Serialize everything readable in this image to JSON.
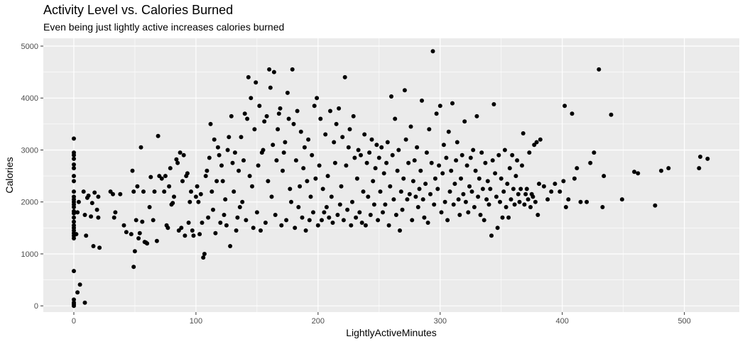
{
  "chart_data": {
    "type": "scatter",
    "title": "Activity Level vs. Calories Burned",
    "subtitle": "Even being just lightly active increases calories burned",
    "xlabel": "LightlyActiveMinutes",
    "ylabel": "Calories",
    "xlim": [
      -25,
      545
    ],
    "ylim": [
      -120,
      5150
    ],
    "x_ticks": [
      0,
      100,
      200,
      300,
      400,
      500
    ],
    "y_ticks": [
      0,
      1000,
      2000,
      3000,
      4000,
      5000
    ],
    "grid": true,
    "point_color": "#000000",
    "panel_color": "#ebebeb",
    "grid_color": "#ffffff",
    "points": [
      [
        0,
        0
      ],
      [
        0,
        30
      ],
      [
        0,
        60
      ],
      [
        0,
        120
      ],
      [
        0,
        670
      ],
      [
        3,
        260
      ],
      [
        5,
        410
      ],
      [
        9,
        60
      ],
      [
        0,
        1300
      ],
      [
        0,
        1350
      ],
      [
        0,
        1400
      ],
      [
        0,
        1450
      ],
      [
        0,
        1500
      ],
      [
        0,
        1550
      ],
      [
        0,
        1620
      ],
      [
        0,
        1700
      ],
      [
        0,
        1780
      ],
      [
        0,
        1820
      ],
      [
        0,
        1900
      ],
      [
        0,
        1950
      ],
      [
        0,
        2000
      ],
      [
        0,
        2050
      ],
      [
        0,
        2100
      ],
      [
        0,
        2200
      ],
      [
        0,
        2400
      ],
      [
        0,
        2500
      ],
      [
        0,
        2650
      ],
      [
        0,
        2720
      ],
      [
        0,
        2830
      ],
      [
        0,
        2900
      ],
      [
        0,
        2950
      ],
      [
        0,
        3220
      ],
      [
        2,
        1380
      ],
      [
        3,
        1800
      ],
      [
        4,
        2000
      ],
      [
        8,
        2200
      ],
      [
        9,
        1750
      ],
      [
        10,
        1350
      ],
      [
        11,
        2080
      ],
      [
        12,
        2120
      ],
      [
        15,
        1980
      ],
      [
        16,
        1150
      ],
      [
        17,
        2180
      ],
      [
        19,
        1850
      ],
      [
        20,
        2100
      ],
      [
        21,
        1120
      ],
      [
        20,
        1700
      ],
      [
        14,
        1720
      ],
      [
        30,
        2200
      ],
      [
        32,
        2150
      ],
      [
        33,
        1700
      ],
      [
        34,
        1800
      ],
      [
        38,
        2150
      ],
      [
        41,
        1550
      ],
      [
        43,
        1420
      ],
      [
        47,
        1380
      ],
      [
        48,
        2600
      ],
      [
        49,
        2200
      ],
      [
        49,
        750
      ],
      [
        50,
        1050
      ],
      [
        51,
        1650
      ],
      [
        52,
        2300
      ],
      [
        53,
        1300
      ],
      [
        54,
        1400
      ],
      [
        55,
        3050
      ],
      [
        56,
        1620
      ],
      [
        57,
        2200
      ],
      [
        58,
        1230
      ],
      [
        59,
        1220
      ],
      [
        60,
        1200
      ],
      [
        62,
        1900
      ],
      [
        63,
        2480
      ],
      [
        65,
        1650
      ],
      [
        66,
        2200
      ],
      [
        68,
        1250
      ],
      [
        69,
        3270
      ],
      [
        70,
        2500
      ],
      [
        72,
        2450
      ],
      [
        74,
        2200
      ],
      [
        75,
        2500
      ],
      [
        76,
        1550
      ],
      [
        77,
        1500
      ],
      [
        78,
        2300
      ],
      [
        79,
        2650
      ],
      [
        80,
        1950
      ],
      [
        81,
        1980
      ],
      [
        82,
        2100
      ],
      [
        84,
        2820
      ],
      [
        85,
        2750
      ],
      [
        86,
        1450
      ],
      [
        87,
        2950
      ],
      [
        88,
        1500
      ],
      [
        89,
        2400
      ],
      [
        90,
        2900
      ],
      [
        91,
        1350
      ],
      [
        92,
        2500
      ],
      [
        93,
        2550
      ],
      [
        94,
        1600
      ],
      [
        95,
        2000
      ],
      [
        96,
        2200
      ],
      [
        97,
        1450
      ],
      [
        98,
        1350
      ],
      [
        100,
        2100
      ],
      [
        101,
        2300
      ],
      [
        102,
        2000
      ],
      [
        103,
        1380
      ],
      [
        104,
        2150
      ],
      [
        105,
        1600
      ],
      [
        106,
        930
      ],
      [
        107,
        1000
      ],
      [
        108,
        2500
      ],
      [
        109,
        2600
      ],
      [
        110,
        1700
      ],
      [
        111,
        2850
      ],
      [
        112,
        3500
      ],
      [
        113,
        2200
      ],
      [
        114,
        1850
      ],
      [
        115,
        3200
      ],
      [
        116,
        1400
      ],
      [
        117,
        2400
      ],
      [
        118,
        3050
      ],
      [
        119,
        2900
      ],
      [
        120,
        1600
      ],
      [
        121,
        2700
      ],
      [
        122,
        2400
      ],
      [
        123,
        1750
      ],
      [
        124,
        2050
      ],
      [
        125,
        1550
      ],
      [
        126,
        3000
      ],
      [
        127,
        3250
      ],
      [
        128,
        1150
      ],
      [
        129,
        3650
      ],
      [
        130,
        2750
      ],
      [
        131,
        2200
      ],
      [
        132,
        2950
      ],
      [
        133,
        1450
      ],
      [
        134,
        1700
      ],
      [
        135,
        2600
      ],
      [
        136,
        1900
      ],
      [
        137,
        3250
      ],
      [
        138,
        2000
      ],
      [
        139,
        2800
      ],
      [
        140,
        3700
      ],
      [
        141,
        1650
      ],
      [
        142,
        3600
      ],
      [
        143,
        4400
      ],
      [
        144,
        2500
      ],
      [
        145,
        4000
      ],
      [
        146,
        2300
      ],
      [
        147,
        1500
      ],
      [
        148,
        3400
      ],
      [
        149,
        4300
      ],
      [
        150,
        1800
      ],
      [
        151,
        2700
      ],
      [
        152,
        3850
      ],
      [
        153,
        1450
      ],
      [
        154,
        2950
      ],
      [
        155,
        3000
      ],
      [
        156,
        3550
      ],
      [
        157,
        1600
      ],
      [
        158,
        3650
      ],
      [
        159,
        2400
      ],
      [
        160,
        4550
      ],
      [
        161,
        4200
      ],
      [
        162,
        2100
      ],
      [
        163,
        3100
      ],
      [
        164,
        4500
      ],
      [
        165,
        1750
      ],
      [
        166,
        2800
      ],
      [
        167,
        3400
      ],
      [
        168,
        3700
      ],
      [
        169,
        3800
      ],
      [
        170,
        1550
      ],
      [
        171,
        2600
      ],
      [
        172,
        2950
      ],
      [
        173,
        3150
      ],
      [
        174,
        1650
      ],
      [
        175,
        4100
      ],
      [
        176,
        3600
      ],
      [
        177,
        2250
      ],
      [
        178,
        2000
      ],
      [
        179,
        4550
      ],
      [
        180,
        3500
      ],
      [
        181,
        1500
      ],
      [
        182,
        2800
      ],
      [
        183,
        3750
      ],
      [
        184,
        1900
      ],
      [
        185,
        2300
      ],
      [
        186,
        3350
      ],
      [
        187,
        1700
      ],
      [
        188,
        2650
      ],
      [
        189,
        3050
      ],
      [
        190,
        1450
      ],
      [
        191,
        2400
      ],
      [
        192,
        3200
      ],
      [
        193,
        1650
      ],
      [
        194,
        2100
      ],
      [
        195,
        2900
      ],
      [
        196,
        1800
      ],
      [
        197,
        3850
      ],
      [
        198,
        2450
      ],
      [
        199,
        4000
      ],
      [
        200,
        1550
      ],
      [
        201,
        2700
      ],
      [
        202,
        3600
      ],
      [
        203,
        1650
      ],
      [
        204,
        2250
      ],
      [
        205,
        1800
      ],
      [
        206,
        3300
      ],
      [
        207,
        1900
      ],
      [
        208,
        2500
      ],
      [
        209,
        1700
      ],
      [
        210,
        3750
      ],
      [
        211,
        2100
      ],
      [
        212,
        1600
      ],
      [
        213,
        3150
      ],
      [
        214,
        2750
      ],
      [
        215,
        3500
      ],
      [
        216,
        1750
      ],
      [
        217,
        3800
      ],
      [
        218,
        1950
      ],
      [
        219,
        2300
      ],
      [
        220,
        3250
      ],
      [
        221,
        1650
      ],
      [
        222,
        4400
      ],
      [
        223,
        2700
      ],
      [
        224,
        1850
      ],
      [
        225,
        3050
      ],
      [
        226,
        3400
      ],
      [
        227,
        1550
      ],
      [
        228,
        2000
      ],
      [
        229,
        3650
      ],
      [
        230,
        2850
      ],
      [
        231,
        1700
      ],
      [
        232,
        2450
      ],
      [
        233,
        3000
      ],
      [
        234,
        1800
      ],
      [
        235,
        2900
      ],
      [
        236,
        1600
      ],
      [
        237,
        2200
      ],
      [
        238,
        3300
      ],
      [
        239,
        1550
      ],
      [
        240,
        2750
      ],
      [
        241,
        2100
      ],
      [
        242,
        2950
      ],
      [
        243,
        1750
      ],
      [
        244,
        3200
      ],
      [
        245,
        2400
      ],
      [
        246,
        1950
      ],
      [
        247,
        2650
      ],
      [
        248,
        3100
      ],
      [
        249,
        1650
      ],
      [
        250,
        2850
      ],
      [
        251,
        2200
      ],
      [
        252,
        3050
      ],
      [
        253,
        1800
      ],
      [
        254,
        2550
      ],
      [
        255,
        1950
      ],
      [
        256,
        2750
      ],
      [
        257,
        3150
      ],
      [
        258,
        1550
      ],
      [
        259,
        2300
      ],
      [
        260,
        4030
      ],
      [
        261,
        2900
      ],
      [
        262,
        2050
      ],
      [
        263,
        3600
      ],
      [
        264,
        1750
      ],
      [
        265,
        2600
      ],
      [
        266,
        3000
      ],
      [
        267,
        1450
      ],
      [
        268,
        2200
      ],
      [
        269,
        1850
      ],
      [
        270,
        2450
      ],
      [
        271,
        4150
      ],
      [
        272,
        3200
      ],
      [
        273,
        2050
      ],
      [
        274,
        2750
      ],
      [
        275,
        2150
      ],
      [
        276,
        3450
      ],
      [
        277,
        1650
      ],
      [
        278,
        2400
      ],
      [
        279,
        2800
      ],
      [
        280,
        2100
      ],
      [
        281,
        3050
      ],
      [
        282,
        1900
      ],
      [
        283,
        2250
      ],
      [
        284,
        2600
      ],
      [
        285,
        3950
      ],
      [
        286,
        2050
      ],
      [
        287,
        1700
      ],
      [
        288,
        2350
      ],
      [
        289,
        2950
      ],
      [
        290,
        1600
      ],
      [
        291,
        3400
      ],
      [
        292,
        2150
      ],
      [
        293,
        2750
      ],
      [
        294,
        4900
      ],
      [
        295,
        1950
      ],
      [
        296,
        2450
      ],
      [
        297,
        3700
      ],
      [
        298,
        2250
      ],
      [
        299,
        2700
      ],
      [
        300,
        3850
      ],
      [
        301,
        1800
      ],
      [
        302,
        2550
      ],
      [
        303,
        3100
      ],
      [
        304,
        2000
      ],
      [
        305,
        2850
      ],
      [
        306,
        1650
      ],
      [
        307,
        3350
      ],
      [
        308,
        2200
      ],
      [
        309,
        2600
      ],
      [
        310,
        3900
      ],
      [
        311,
        1950
      ],
      [
        312,
        2350
      ],
      [
        313,
        2800
      ],
      [
        314,
        3150
      ],
      [
        315,
        2050
      ],
      [
        316,
        1750
      ],
      [
        317,
        2450
      ],
      [
        318,
        2900
      ],
      [
        319,
        2150
      ],
      [
        320,
        3550
      ],
      [
        321,
        2000
      ],
      [
        322,
        2700
      ],
      [
        323,
        1800
      ],
      [
        324,
        2300
      ],
      [
        325,
        2850
      ],
      [
        326,
        2200
      ],
      [
        327,
        3000
      ],
      [
        328,
        1900
      ],
      [
        329,
        2600
      ],
      [
        330,
        3650
      ],
      [
        331,
        2100
      ],
      [
        332,
        2450
      ],
      [
        333,
        1750
      ],
      [
        334,
        2950
      ],
      [
        335,
        2250
      ],
      [
        336,
        1650
      ],
      [
        337,
        2750
      ],
      [
        338,
        2050
      ],
      [
        339,
        2400
      ],
      [
        340,
        1950
      ],
      [
        341,
        2250
      ],
      [
        342,
        1350
      ],
      [
        343,
        2800
      ],
      [
        344,
        3880
      ],
      [
        345,
        2550
      ],
      [
        346,
        2100
      ],
      [
        347,
        1500
      ],
      [
        348,
        2900
      ],
      [
        349,
        2000
      ],
      [
        350,
        2450
      ],
      [
        351,
        1700
      ],
      [
        352,
        2200
      ],
      [
        353,
        3000
      ],
      [
        354,
        1900
      ],
      [
        355,
        2350
      ],
      [
        356,
        1700
      ],
      [
        357,
        2650
      ],
      [
        358,
        2050
      ],
      [
        359,
        2900
      ],
      [
        360,
        2250
      ],
      [
        361,
        1950
      ],
      [
        362,
        2500
      ],
      [
        363,
        2800
      ],
      [
        364,
        2150
      ],
      [
        365,
        2000
      ],
      [
        366,
        2250
      ],
      [
        367,
        2700
      ],
      [
        368,
        3320
      ],
      [
        369,
        1950
      ],
      [
        370,
        2150
      ],
      [
        371,
        2250
      ],
      [
        372,
        2050
      ],
      [
        373,
        2950
      ],
      [
        374,
        1900
      ],
      [
        375,
        2150
      ],
      [
        376,
        2100
      ],
      [
        377,
        3100
      ],
      [
        378,
        2000
      ],
      [
        379,
        3150
      ],
      [
        380,
        1750
      ],
      [
        381,
        2350
      ],
      [
        382,
        3200
      ],
      [
        385,
        2300
      ],
      [
        388,
        2050
      ],
      [
        391,
        2200
      ],
      [
        394,
        2350
      ],
      [
        398,
        2200
      ],
      [
        401,
        2400
      ],
      [
        402,
        3850
      ],
      [
        403,
        1900
      ],
      [
        405,
        2050
      ],
      [
        408,
        3700
      ],
      [
        410,
        2450
      ],
      [
        412,
        2650
      ],
      [
        415,
        2000
      ],
      [
        420,
        2000
      ],
      [
        423,
        2750
      ],
      [
        426,
        2950
      ],
      [
        430,
        4550
      ],
      [
        433,
        1900
      ],
      [
        434,
        2500
      ],
      [
        440,
        3680
      ],
      [
        449,
        2050
      ],
      [
        459,
        2580
      ],
      [
        462,
        2550
      ],
      [
        476,
        1930
      ],
      [
        481,
        2600
      ],
      [
        487,
        2650
      ],
      [
        512,
        2650
      ],
      [
        513,
        2870
      ],
      [
        519,
        2830
      ]
    ]
  }
}
